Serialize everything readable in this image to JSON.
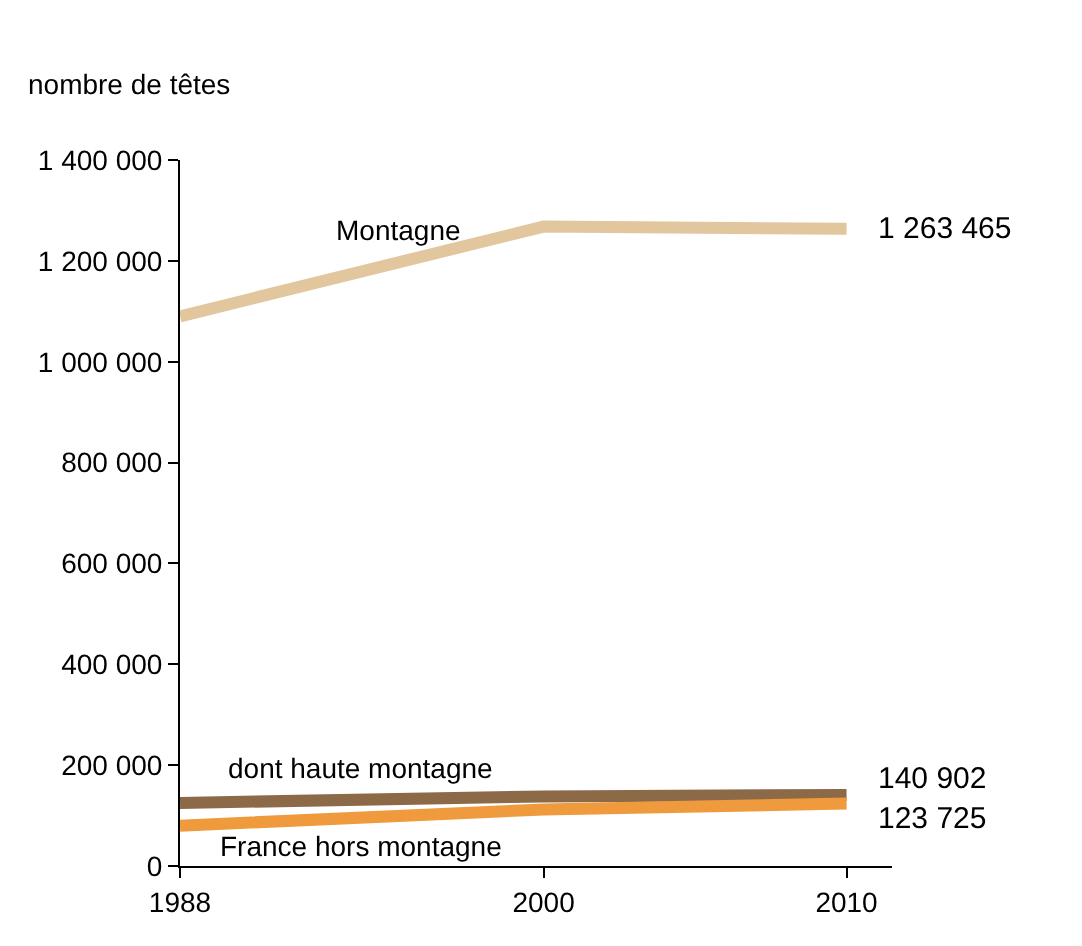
{
  "chart_data": {
    "type": "line",
    "ylabel": "nombre de têtes",
    "x": [
      1988,
      2000,
      2010
    ],
    "xlim": [
      1988,
      2011.5
    ],
    "xticks": [
      1988,
      2000,
      2010
    ],
    "ylim": [
      0,
      1400000
    ],
    "yticks": [
      {
        "value": 0,
        "label": "0"
      },
      {
        "value": 200000,
        "label": "200 000"
      },
      {
        "value": 400000,
        "label": "400 000"
      },
      {
        "value": 600000,
        "label": "600 000"
      },
      {
        "value": 800000,
        "label": "800 000"
      },
      {
        "value": 1000000,
        "label": "1 000 000"
      },
      {
        "value": 1200000,
        "label": "1 200 000"
      },
      {
        "value": 1400000,
        "label": "1 400 000"
      }
    ],
    "legend": false,
    "marker": "none",
    "line_style": "solid",
    "series": [
      {
        "name": "Montagne",
        "color": "#e2c69e",
        "values": [
          1090000,
          1268000,
          1263465
        ],
        "value_labels": [
          null,
          null,
          "1 263 465"
        ]
      },
      {
        "name": "dont haute montagne",
        "color": "#8c6a48",
        "values": [
          125000,
          138000,
          140902
        ],
        "value_labels": [
          null,
          null,
          "140 902"
        ]
      },
      {
        "name": "France hors montagne",
        "color": "#ef9a3c",
        "values": [
          80000,
          112000,
          123725
        ],
        "value_labels": [
          null,
          null,
          "123 725"
        ]
      }
    ]
  }
}
